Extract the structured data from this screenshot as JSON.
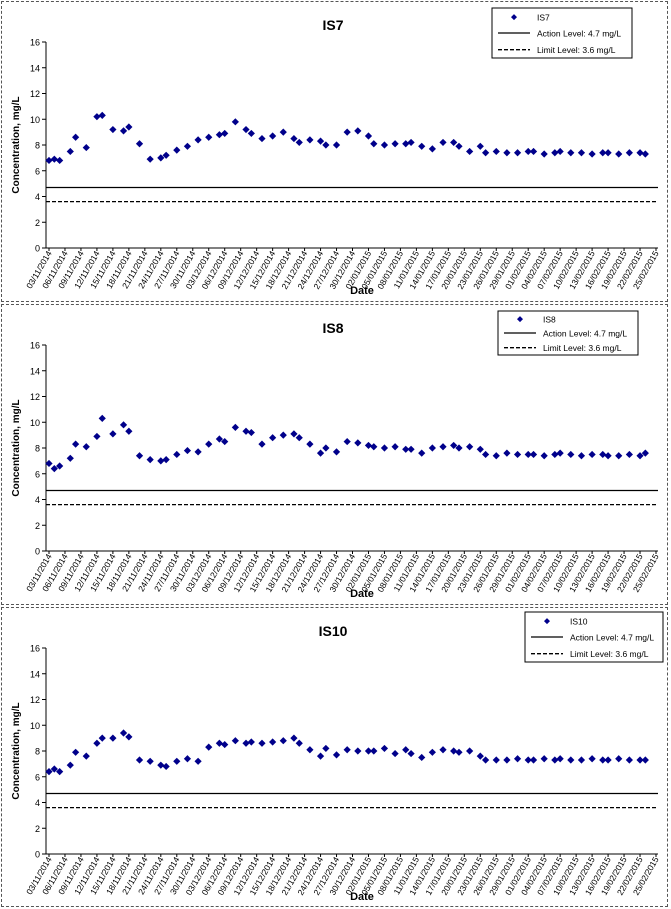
{
  "chart_data": [
    {
      "type": "scatter",
      "title": "IS7",
      "xlabel": "Date",
      "ylabel": "Concentration, mg/L",
      "ylim": [
        0,
        16
      ],
      "yticks": [
        0,
        2,
        4,
        6,
        8,
        10,
        12,
        14,
        16
      ],
      "grid": false,
      "legend_position": "top-right",
      "x_tick_labels": [
        "03/11/2014",
        "06/11/2014",
        "09/11/2014",
        "12/11/2014",
        "15/11/2014",
        "18/11/2014",
        "21/11/2014",
        "24/11/2014",
        "27/11/2014",
        "30/11/2014",
        "03/12/2014",
        "06/12/2014",
        "09/12/2014",
        "12/12/2014",
        "15/12/2014",
        "18/12/2014",
        "21/12/2014",
        "24/12/2014",
        "27/12/2014",
        "30/12/2014",
        "02/01/2015",
        "05/01/2015",
        "08/01/2015",
        "11/01/2015",
        "14/01/2015",
        "17/01/2015",
        "20/01/2015",
        "23/01/2015",
        "26/01/2015",
        "29/01/2015",
        "01/02/2015",
        "04/02/2015",
        "07/02/2015",
        "10/02/2015",
        "13/02/2015",
        "16/02/2015",
        "19/02/2015",
        "22/02/2015",
        "25/02/2015"
      ],
      "series": [
        {
          "name": "IS7",
          "color": "#00008b",
          "x": [
            "03/11/2014",
            "04/11/2014",
            "05/11/2014",
            "07/11/2014",
            "08/11/2014",
            "10/11/2014",
            "12/11/2014",
            "13/11/2014",
            "15/11/2014",
            "17/11/2014",
            "18/11/2014",
            "20/11/2014",
            "22/11/2014",
            "24/11/2014",
            "25/11/2014",
            "27/11/2014",
            "29/11/2014",
            "01/12/2014",
            "03/12/2014",
            "05/12/2014",
            "06/12/2014",
            "08/12/2014",
            "10/12/2014",
            "11/12/2014",
            "13/12/2014",
            "15/12/2014",
            "17/12/2014",
            "19/12/2014",
            "20/12/2014",
            "22/12/2014",
            "24/12/2014",
            "25/12/2014",
            "27/12/2014",
            "29/12/2014",
            "31/12/2014",
            "02/01/2015",
            "03/01/2015",
            "05/01/2015",
            "07/01/2015",
            "09/01/2015",
            "10/01/2015",
            "12/01/2015",
            "14/01/2015",
            "16/01/2015",
            "18/01/2015",
            "19/01/2015",
            "21/01/2015",
            "23/01/2015",
            "24/01/2015",
            "26/01/2015",
            "28/01/2015",
            "30/01/2015",
            "01/02/2015",
            "02/02/2015",
            "04/02/2015",
            "06/02/2015",
            "07/02/2015",
            "09/02/2015",
            "11/02/2015",
            "13/02/2015",
            "15/02/2015",
            "16/02/2015",
            "18/02/2015",
            "20/02/2015",
            "22/02/2015",
            "23/02/2015"
          ],
          "y": [
            6.8,
            6.9,
            6.8,
            7.5,
            8.6,
            7.8,
            10.2,
            10.3,
            9.2,
            9.1,
            9.4,
            8.1,
            6.9,
            7.0,
            7.2,
            7.6,
            7.9,
            8.4,
            8.6,
            8.8,
            8.9,
            9.8,
            9.2,
            8.9,
            8.5,
            8.7,
            9.0,
            8.5,
            8.2,
            8.4,
            8.3,
            8.0,
            8.0,
            9.0,
            9.1,
            8.7,
            8.1,
            8.0,
            8.1,
            8.1,
            8.2,
            7.9,
            7.7,
            8.2,
            8.2,
            7.9,
            7.5,
            7.9,
            7.4,
            7.5,
            7.4,
            7.4,
            7.5,
            7.5,
            7.3,
            7.4,
            7.5,
            7.4,
            7.4,
            7.3,
            7.4,
            7.4,
            7.3,
            7.4,
            7.4,
            7.3
          ]
        }
      ],
      "reference_lines": [
        {
          "name": "Action Level: 4.7 mg/L",
          "y": 4.7,
          "style": "solid"
        },
        {
          "name": "Limit Level: 3.6 mg/L",
          "y": 3.6,
          "style": "dashed"
        }
      ]
    },
    {
      "type": "scatter",
      "title": "IS8",
      "xlabel": "Date",
      "ylabel": "Concentration, mg/L",
      "ylim": [
        0,
        16
      ],
      "yticks": [
        0,
        2,
        4,
        6,
        8,
        10,
        12,
        14,
        16
      ],
      "grid": false,
      "legend_position": "top-right",
      "x_tick_labels": [
        "03/11/2014",
        "06/11/2014",
        "09/11/2014",
        "12/11/2014",
        "15/11/2014",
        "18/11/2014",
        "21/11/2014",
        "24/11/2014",
        "27/11/2014",
        "30/11/2014",
        "03/12/2014",
        "06/12/2014",
        "09/12/2014",
        "12/12/2014",
        "15/12/2014",
        "18/12/2014",
        "21/12/2014",
        "24/12/2014",
        "27/12/2014",
        "30/12/2014",
        "02/01/2015",
        "05/01/2015",
        "08/01/2015",
        "11/01/2015",
        "14/01/2015",
        "17/01/2015",
        "20/01/2015",
        "23/01/2015",
        "26/01/2015",
        "29/01/2015",
        "01/02/2015",
        "04/02/2015",
        "07/02/2015",
        "10/02/2015",
        "13/02/2015",
        "16/02/2015",
        "19/02/2015",
        "22/02/2015",
        "25/02/2015"
      ],
      "series": [
        {
          "name": "IS8",
          "color": "#00008b",
          "x": [
            "03/11/2014",
            "04/11/2014",
            "05/11/2014",
            "07/11/2014",
            "08/11/2014",
            "10/11/2014",
            "12/11/2014",
            "13/11/2014",
            "15/11/2014",
            "17/11/2014",
            "18/11/2014",
            "20/11/2014",
            "22/11/2014",
            "24/11/2014",
            "25/11/2014",
            "27/11/2014",
            "29/11/2014",
            "01/12/2014",
            "03/12/2014",
            "05/12/2014",
            "06/12/2014",
            "08/12/2014",
            "10/12/2014",
            "11/12/2014",
            "13/12/2014",
            "15/12/2014",
            "17/12/2014",
            "19/12/2014",
            "20/12/2014",
            "22/12/2014",
            "24/12/2014",
            "25/12/2014",
            "27/12/2014",
            "29/12/2014",
            "31/12/2014",
            "02/01/2015",
            "03/01/2015",
            "05/01/2015",
            "07/01/2015",
            "09/01/2015",
            "10/01/2015",
            "12/01/2015",
            "14/01/2015",
            "16/01/2015",
            "18/01/2015",
            "19/01/2015",
            "21/01/2015",
            "23/01/2015",
            "24/01/2015",
            "26/01/2015",
            "28/01/2015",
            "30/01/2015",
            "01/02/2015",
            "02/02/2015",
            "04/02/2015",
            "06/02/2015",
            "07/02/2015",
            "09/02/2015",
            "11/02/2015",
            "13/02/2015",
            "15/02/2015",
            "16/02/2015",
            "18/02/2015",
            "20/02/2015",
            "22/02/2015",
            "23/02/2015"
          ],
          "y": [
            6.8,
            6.4,
            6.6,
            7.2,
            8.3,
            8.1,
            8.9,
            10.3,
            9.1,
            9.8,
            9.3,
            7.4,
            7.1,
            7.0,
            7.1,
            7.5,
            7.8,
            7.7,
            8.3,
            8.7,
            8.5,
            9.6,
            9.3,
            9.2,
            8.3,
            8.8,
            9.0,
            9.1,
            8.8,
            8.3,
            7.6,
            8.0,
            7.7,
            8.5,
            8.4,
            8.2,
            8.1,
            8.0,
            8.1,
            7.9,
            7.9,
            7.6,
            8.0,
            8.1,
            8.2,
            8.0,
            8.1,
            7.9,
            7.5,
            7.4,
            7.6,
            7.5,
            7.5,
            7.5,
            7.4,
            7.5,
            7.6,
            7.5,
            7.4,
            7.5,
            7.5,
            7.4,
            7.4,
            7.5,
            7.4,
            7.6
          ]
        }
      ],
      "reference_lines": [
        {
          "name": "Action Level: 4.7 mg/L",
          "y": 4.7,
          "style": "solid"
        },
        {
          "name": "Limit Level: 3.6 mg/L",
          "y": 3.6,
          "style": "dashed"
        }
      ]
    },
    {
      "type": "scatter",
      "title": "IS10",
      "xlabel": "Date",
      "ylabel": "Concentration, mg/L",
      "ylim": [
        0,
        16
      ],
      "yticks": [
        0,
        2,
        4,
        6,
        8,
        10,
        12,
        14,
        16
      ],
      "grid": false,
      "legend_position": "top-right",
      "x_tick_labels": [
        "03/11/2014",
        "06/11/2014",
        "09/11/2014",
        "12/11/2014",
        "15/11/2014",
        "18/11/2014",
        "21/11/2014",
        "24/11/2014",
        "27/11/2014",
        "30/11/2014",
        "03/12/2014",
        "06/12/2014",
        "09/12/2014",
        "12/12/2014",
        "15/12/2014",
        "18/12/2014",
        "21/12/2014",
        "24/12/2014",
        "27/12/2014",
        "30/12/2014",
        "02/01/2015",
        "05/01/2015",
        "08/01/2015",
        "11/01/2015",
        "14/01/2015",
        "17/01/2015",
        "20/01/2015",
        "23/01/2015",
        "26/01/2015",
        "29/01/2015",
        "01/02/2015",
        "04/02/2015",
        "07/02/2015",
        "10/02/2015",
        "13/02/2015",
        "16/02/2015",
        "19/02/2015",
        "22/02/2015",
        "25/02/2015"
      ],
      "series": [
        {
          "name": "IS10",
          "color": "#00008b",
          "x": [
            "03/11/2014",
            "04/11/2014",
            "05/11/2014",
            "07/11/2014",
            "08/11/2014",
            "10/11/2014",
            "12/11/2014",
            "13/11/2014",
            "15/11/2014",
            "17/11/2014",
            "18/11/2014",
            "20/11/2014",
            "22/11/2014",
            "24/11/2014",
            "25/11/2014",
            "27/11/2014",
            "29/11/2014",
            "01/12/2014",
            "03/12/2014",
            "05/12/2014",
            "06/12/2014",
            "08/12/2014",
            "10/12/2014",
            "11/12/2014",
            "13/12/2014",
            "15/12/2014",
            "17/12/2014",
            "19/12/2014",
            "20/12/2014",
            "22/12/2014",
            "24/12/2014",
            "25/12/2014",
            "27/12/2014",
            "29/12/2014",
            "31/12/2014",
            "02/01/2015",
            "03/01/2015",
            "05/01/2015",
            "07/01/2015",
            "09/01/2015",
            "10/01/2015",
            "12/01/2015",
            "14/01/2015",
            "16/01/2015",
            "18/01/2015",
            "19/01/2015",
            "21/01/2015",
            "23/01/2015",
            "24/01/2015",
            "26/01/2015",
            "28/01/2015",
            "30/01/2015",
            "01/02/2015",
            "02/02/2015",
            "04/02/2015",
            "06/02/2015",
            "07/02/2015",
            "09/02/2015",
            "11/02/2015",
            "13/02/2015",
            "15/02/2015",
            "16/02/2015",
            "18/02/2015",
            "20/02/2015",
            "22/02/2015",
            "23/02/2015"
          ],
          "y": [
            6.4,
            6.6,
            6.4,
            6.9,
            7.9,
            7.6,
            8.6,
            9.0,
            9.0,
            9.4,
            9.1,
            7.3,
            7.2,
            6.9,
            6.8,
            7.2,
            7.4,
            7.2,
            8.3,
            8.6,
            8.5,
            8.8,
            8.6,
            8.7,
            8.6,
            8.7,
            8.8,
            9.0,
            8.6,
            8.1,
            7.6,
            8.2,
            7.7,
            8.1,
            8.0,
            8.0,
            8.0,
            8.2,
            7.8,
            8.1,
            7.8,
            7.5,
            7.9,
            8.1,
            8.0,
            7.9,
            8.0,
            7.6,
            7.3,
            7.3,
            7.3,
            7.4,
            7.3,
            7.3,
            7.4,
            7.3,
            7.4,
            7.3,
            7.3,
            7.4,
            7.3,
            7.3,
            7.4,
            7.3,
            7.3,
            7.3
          ]
        }
      ],
      "reference_lines": [
        {
          "name": "Action Level: 4.7 mg/L",
          "y": 4.7,
          "style": "solid"
        },
        {
          "name": "Limit Level: 3.6 mg/L",
          "y": 3.6,
          "style": "dashed"
        }
      ]
    }
  ]
}
